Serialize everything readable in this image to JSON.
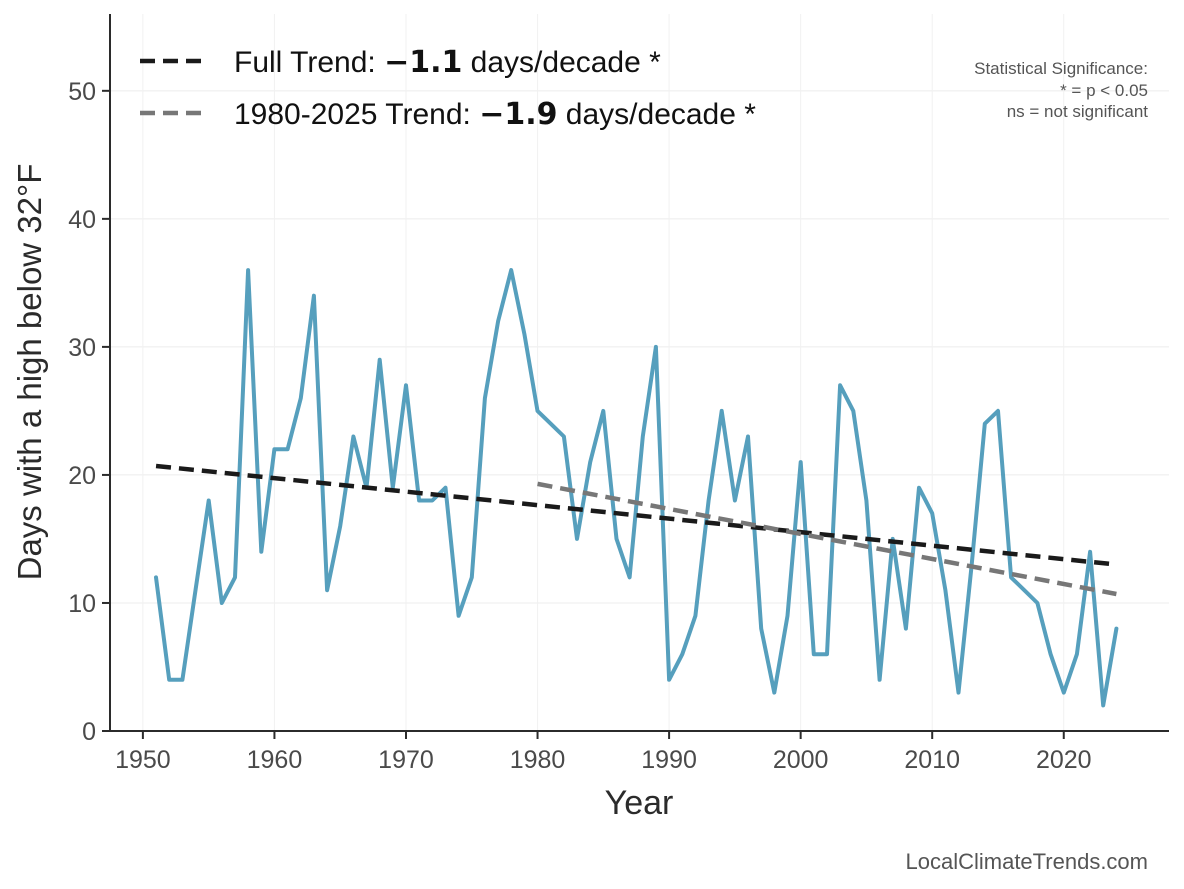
{
  "chart_data": {
    "type": "line",
    "xlabel": "Year",
    "ylabel": "Days with a high below 32°F",
    "xlim": [
      1947.5,
      2028
    ],
    "ylim": [
      0,
      56
    ],
    "x_ticks": [
      "1950",
      "1960",
      "1970",
      "1980",
      "1990",
      "2000",
      "2010",
      "2020"
    ],
    "y_ticks": [
      "0",
      "10",
      "20",
      "30",
      "40",
      "50"
    ],
    "grid": true,
    "series": [
      {
        "color": "#569fbd",
        "x": [
          1951,
          1952,
          1953,
          1954,
          1955,
          1956,
          1957,
          1958,
          1959,
          1960,
          1961,
          1962,
          1963,
          1964,
          1965,
          1966,
          1967,
          1968,
          1969,
          1970,
          1971,
          1972,
          1973,
          1974,
          1975,
          1976,
          1977,
          1978,
          1979,
          1980,
          1981,
          1982,
          1983,
          1984,
          1985,
          1986,
          1987,
          1988,
          1989,
          1990,
          1991,
          1992,
          1993,
          1994,
          1995,
          1996,
          1997,
          1998,
          1999,
          2000,
          2001,
          2002,
          2003,
          2004,
          2005,
          2006,
          2007,
          2008,
          2009,
          2010,
          2011,
          2012,
          2013,
          2014,
          2015,
          2016,
          2017,
          2018,
          2019,
          2020,
          2021,
          2022,
          2023,
          2024
        ],
        "values": [
          12,
          4,
          4,
          11,
          18,
          10,
          12,
          36,
          14,
          22,
          22,
          26,
          34,
          11,
          16,
          23,
          19,
          29,
          19,
          27,
          18,
          18,
          19,
          9,
          12,
          26,
          32,
          36,
          31,
          25,
          24,
          23,
          15,
          21,
          25,
          15,
          12,
          23,
          30,
          4,
          6,
          9,
          18,
          25,
          18,
          23,
          8,
          3,
          9,
          21,
          6,
          6,
          27,
          25,
          18,
          4,
          15,
          8,
          19,
          17,
          11,
          3,
          13,
          24,
          25,
          12,
          11,
          10,
          6,
          3,
          6,
          14,
          2,
          8
        ]
      }
    ],
    "trends": [
      {
        "label_prefix": "Full Trend: ",
        "value": "−1.1",
        "label_suffix": " days/decade *",
        "color": "#1a1a1a",
        "x": [
          1951,
          2024
        ],
        "y": [
          20.7,
          13.0
        ]
      },
      {
        "label_prefix": "1980-2025 Trend: ",
        "value": "−1.9",
        "label_suffix": " days/decade *",
        "color": "#777777",
        "x": [
          1980,
          2024
        ],
        "y": [
          19.3,
          10.7
        ]
      }
    ],
    "legend_position": "top-left",
    "annotation": {
      "line1": "Statistical Significance:",
      "line2": "* = p < 0.05",
      "line3": "ns = not significant"
    }
  },
  "credit": "LocalClimateTrends.com"
}
